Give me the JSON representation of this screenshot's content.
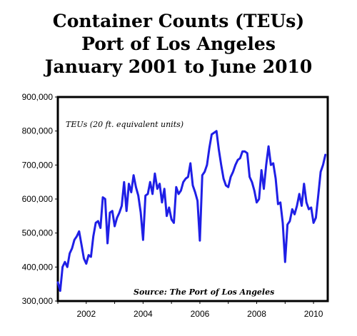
{
  "chart_data": {
    "type": "line",
    "title_lines": [
      "Container Counts (TEUs)",
      "Port of Los Angeles",
      "January 2001 to June 2010"
    ],
    "annotation_units": "TEUs (20 ft. equivalent units)",
    "annotation_source": "Source: The Port of Los Angeles",
    "ylim": [
      300000,
      900000
    ],
    "y_ticks": [
      300000,
      400000,
      500000,
      600000,
      700000,
      800000,
      900000
    ],
    "y_tick_labels": [
      "300,000",
      "400,000",
      "500,000",
      "600,000",
      "700,000",
      "800,000",
      "900,000"
    ],
    "x_tick_labels": [
      "2002",
      "2004",
      "2006",
      "2008",
      "2010"
    ],
    "x_tick_years": [
      2002,
      2004,
      2006,
      2008,
      2010
    ],
    "grid": false,
    "line_color": "#1f1fe6",
    "series": [
      {
        "points": [
          [
            "2001-01",
            355000
          ],
          [
            "2001-02",
            330000
          ],
          [
            "2001-03",
            400000
          ],
          [
            "2001-04",
            415000
          ],
          [
            "2001-05",
            400000
          ],
          [
            "2001-06",
            440000
          ],
          [
            "2001-07",
            455000
          ],
          [
            "2001-08",
            480000
          ],
          [
            "2001-09",
            490000
          ],
          [
            "2001-10",
            505000
          ],
          [
            "2001-11",
            465000
          ],
          [
            "2001-12",
            425000
          ],
          [
            "2002-01",
            410000
          ],
          [
            "2002-02",
            435000
          ],
          [
            "2002-03",
            430000
          ],
          [
            "2002-04",
            490000
          ],
          [
            "2002-05",
            530000
          ],
          [
            "2002-06",
            535000
          ],
          [
            "2002-07",
            515000
          ],
          [
            "2002-08",
            605000
          ],
          [
            "2002-09",
            600000
          ],
          [
            "2002-10",
            470000
          ],
          [
            "2002-11",
            560000
          ],
          [
            "2002-12",
            565000
          ],
          [
            "2003-01",
            520000
          ],
          [
            "2003-02",
            545000
          ],
          [
            "2003-03",
            560000
          ],
          [
            "2003-04",
            580000
          ],
          [
            "2003-05",
            650000
          ],
          [
            "2003-06",
            565000
          ],
          [
            "2003-07",
            645000
          ],
          [
            "2003-08",
            620000
          ],
          [
            "2003-09",
            670000
          ],
          [
            "2003-10",
            635000
          ],
          [
            "2003-11",
            610000
          ],
          [
            "2003-12",
            560000
          ],
          [
            "2004-01",
            480000
          ],
          [
            "2004-02",
            610000
          ],
          [
            "2004-03",
            615000
          ],
          [
            "2004-04",
            650000
          ],
          [
            "2004-05",
            615000
          ],
          [
            "2004-06",
            675000
          ],
          [
            "2004-07",
            630000
          ],
          [
            "2004-08",
            645000
          ],
          [
            "2004-09",
            590000
          ],
          [
            "2004-10",
            630000
          ],
          [
            "2004-11",
            550000
          ],
          [
            "2004-12",
            575000
          ],
          [
            "2005-01",
            540000
          ],
          [
            "2005-02",
            530000
          ],
          [
            "2005-03",
            635000
          ],
          [
            "2005-04",
            615000
          ],
          [
            "2005-05",
            625000
          ],
          [
            "2005-06",
            650000
          ],
          [
            "2005-07",
            660000
          ],
          [
            "2005-08",
            665000
          ],
          [
            "2005-09",
            705000
          ],
          [
            "2005-10",
            640000
          ],
          [
            "2005-11",
            620000
          ],
          [
            "2005-12",
            595000
          ],
          [
            "2006-01",
            478000
          ],
          [
            "2006-02",
            670000
          ],
          [
            "2006-03",
            680000
          ],
          [
            "2006-04",
            700000
          ],
          [
            "2006-05",
            750000
          ],
          [
            "2006-06",
            790000
          ],
          [
            "2006-07",
            795000
          ],
          [
            "2006-08",
            800000
          ],
          [
            "2006-09",
            745000
          ],
          [
            "2006-10",
            700000
          ],
          [
            "2006-11",
            660000
          ],
          [
            "2006-12",
            640000
          ],
          [
            "2007-01",
            635000
          ],
          [
            "2007-02",
            665000
          ],
          [
            "2007-03",
            680000
          ],
          [
            "2007-04",
            700000
          ],
          [
            "2007-05",
            715000
          ],
          [
            "2007-06",
            720000
          ],
          [
            "2007-07",
            740000
          ],
          [
            "2007-08",
            740000
          ],
          [
            "2007-09",
            735000
          ],
          [
            "2007-10",
            665000
          ],
          [
            "2007-11",
            650000
          ],
          [
            "2007-12",
            625000
          ],
          [
            "2008-01",
            590000
          ],
          [
            "2008-02",
            600000
          ],
          [
            "2008-03",
            685000
          ],
          [
            "2008-04",
            630000
          ],
          [
            "2008-05",
            700000
          ],
          [
            "2008-06",
            755000
          ],
          [
            "2008-07",
            700000
          ],
          [
            "2008-08",
            705000
          ],
          [
            "2008-09",
            660000
          ],
          [
            "2008-10",
            585000
          ],
          [
            "2008-11",
            590000
          ],
          [
            "2008-12",
            530000
          ],
          [
            "2009-01",
            415000
          ],
          [
            "2009-02",
            525000
          ],
          [
            "2009-03",
            535000
          ],
          [
            "2009-04",
            570000
          ],
          [
            "2009-05",
            555000
          ],
          [
            "2009-06",
            580000
          ],
          [
            "2009-07",
            615000
          ],
          [
            "2009-08",
            580000
          ],
          [
            "2009-09",
            645000
          ],
          [
            "2009-10",
            590000
          ],
          [
            "2009-11",
            570000
          ],
          [
            "2009-12",
            575000
          ],
          [
            "2010-01",
            530000
          ],
          [
            "2010-02",
            545000
          ],
          [
            "2010-03",
            610000
          ],
          [
            "2010-04",
            680000
          ],
          [
            "2010-05",
            700000
          ],
          [
            "2010-06",
            730000
          ]
        ]
      }
    ]
  }
}
